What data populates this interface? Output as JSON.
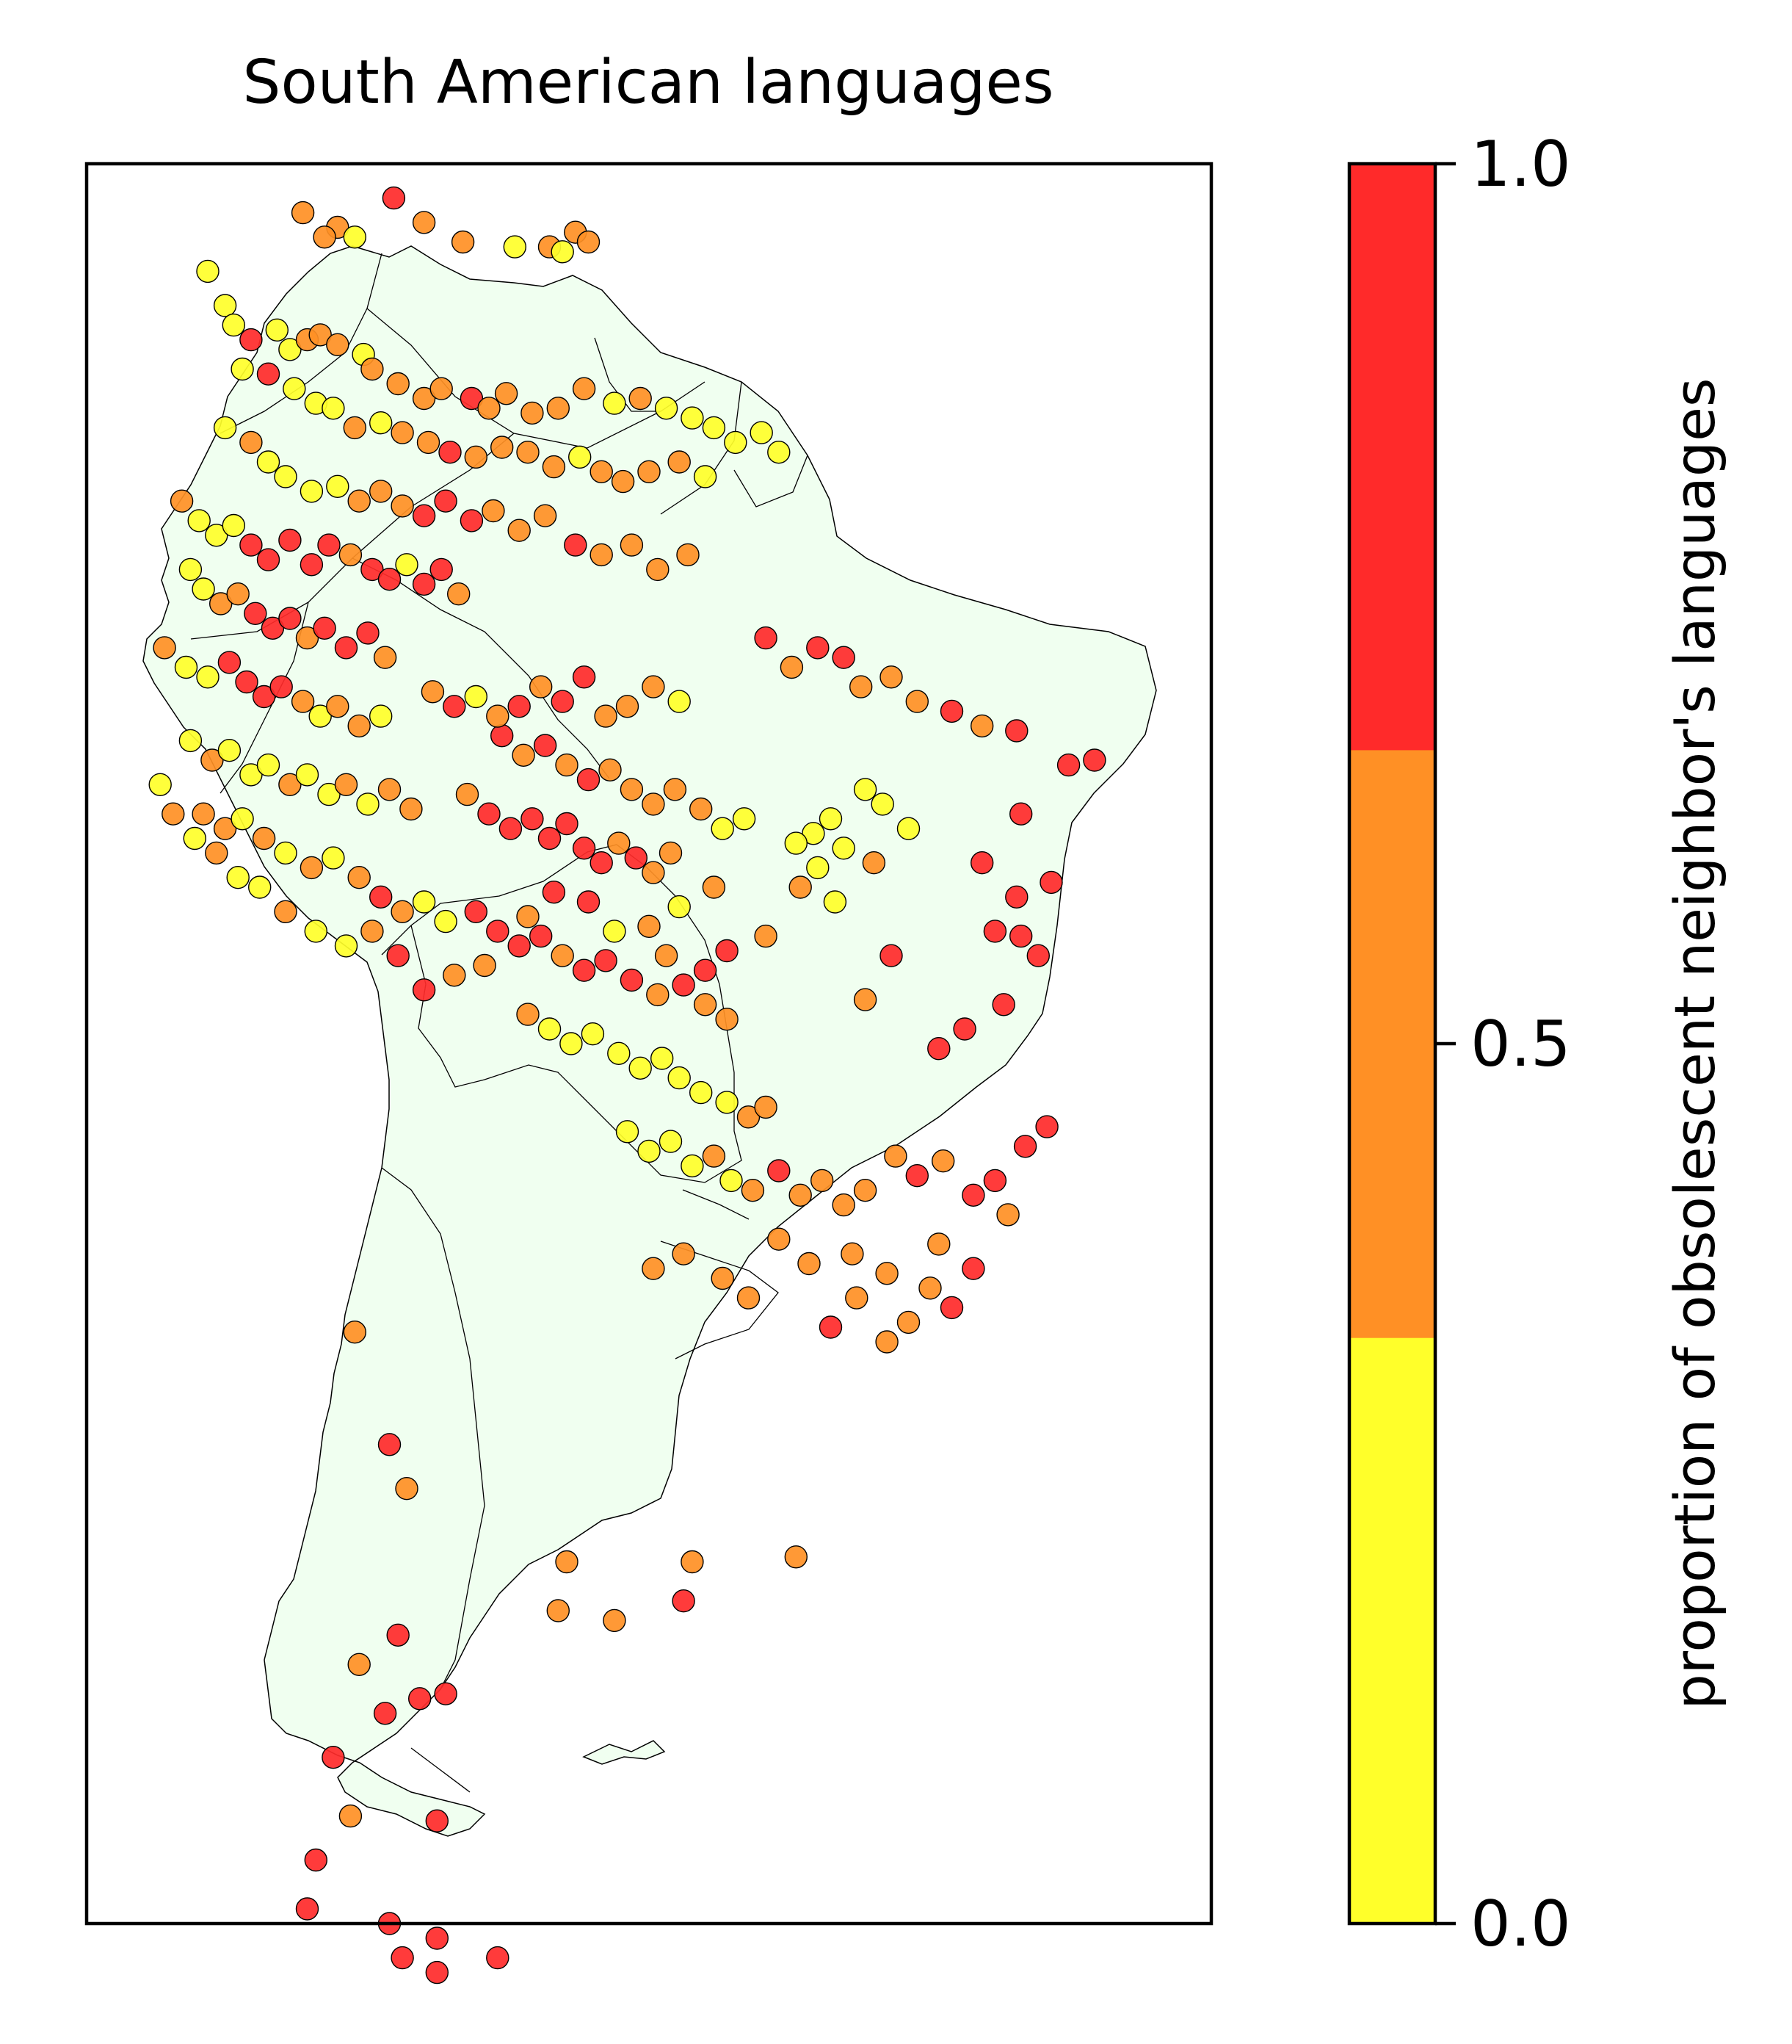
{
  "title": "South American languages",
  "colorbar": {
    "label": "proportion of obsolescent neighbor's languages",
    "ticks": [
      "0.0",
      "0.5",
      "1.0"
    ],
    "bins": [
      {
        "from": 0.0,
        "to": 0.333,
        "color": "#ffff2a"
      },
      {
        "from": 0.333,
        "to": 0.667,
        "color": "#ff9025"
      },
      {
        "from": 0.667,
        "to": 1.0,
        "color": "#ff2a2a"
      }
    ]
  },
  "colors": {
    "land": "#f0fff0",
    "low": "#ffff2a",
    "mid": "#ff9025",
    "high": "#ff2a2a"
  },
  "chart_data": {
    "type": "scatter",
    "title": "South American languages",
    "xlabel": "",
    "ylabel": "",
    "xlim": [
      -84,
      -32
    ],
    "ylim": [
      -58,
      14
    ],
    "grid": false,
    "legend": "colorbar-right",
    "points": [
      [
        -74.0,
        12.0,
        0.5
      ],
      [
        -72.4,
        11.4,
        0.5
      ],
      [
        -71.6,
        11.0,
        0.2
      ],
      [
        -73.0,
        11.0,
        0.5
      ],
      [
        -69.8,
        12.6,
        1.0
      ],
      [
        -68.4,
        11.6,
        0.5
      ],
      [
        -66.6,
        10.8,
        0.5
      ],
      [
        -64.2,
        10.6,
        0.2
      ],
      [
        -62.6,
        10.6,
        0.5
      ],
      [
        -62.0,
        10.4,
        0.2
      ],
      [
        -61.4,
        11.2,
        0.5
      ],
      [
        -60.8,
        10.8,
        0.5
      ],
      [
        -78.4,
        9.6,
        0.2
      ],
      [
        -77.6,
        8.2,
        0.2
      ],
      [
        -77.2,
        7.4,
        0.2
      ],
      [
        -76.4,
        6.8,
        1.0
      ],
      [
        -75.2,
        7.2,
        0.2
      ],
      [
        -74.6,
        6.4,
        0.2
      ],
      [
        -73.8,
        6.8,
        0.5
      ],
      [
        -73.2,
        7.0,
        0.5
      ],
      [
        -72.4,
        6.6,
        0.5
      ],
      [
        -71.2,
        6.2,
        0.2
      ],
      [
        -70.8,
        5.6,
        0.5
      ],
      [
        -69.6,
        5.0,
        0.5
      ],
      [
        -68.4,
        4.4,
        0.5
      ],
      [
        -67.6,
        4.8,
        0.5
      ],
      [
        -66.2,
        4.4,
        1.0
      ],
      [
        -65.4,
        4.0,
        0.5
      ],
      [
        -64.6,
        4.6,
        0.5
      ],
      [
        -63.4,
        3.8,
        0.5
      ],
      [
        -62.2,
        4.0,
        0.5
      ],
      [
        -61.0,
        4.8,
        0.5
      ],
      [
        -59.6,
        4.2,
        0.2
      ],
      [
        -58.4,
        4.4,
        0.5
      ],
      [
        -57.2,
        4.0,
        0.2
      ],
      [
        -56.0,
        3.6,
        0.2
      ],
      [
        -55.0,
        3.2,
        0.2
      ],
      [
        -54.0,
        2.6,
        0.2
      ],
      [
        -52.8,
        3.0,
        0.2
      ],
      [
        -52.0,
        2.2,
        0.2
      ],
      [
        -76.8,
        5.6,
        0.2
      ],
      [
        -75.6,
        5.4,
        1.0
      ],
      [
        -74.4,
        4.8,
        0.2
      ],
      [
        -73.4,
        4.2,
        0.2
      ],
      [
        -72.6,
        4.0,
        0.2
      ],
      [
        -71.6,
        3.2,
        0.5
      ],
      [
        -70.4,
        3.4,
        0.2
      ],
      [
        -69.4,
        3.0,
        0.5
      ],
      [
        -68.2,
        2.6,
        0.5
      ],
      [
        -67.2,
        2.2,
        1.0
      ],
      [
        -66.0,
        2.0,
        0.5
      ],
      [
        -64.8,
        2.4,
        0.5
      ],
      [
        -63.6,
        2.2,
        0.5
      ],
      [
        -62.4,
        1.6,
        0.5
      ],
      [
        -61.2,
        2.0,
        0.2
      ],
      [
        -60.2,
        1.4,
        0.5
      ],
      [
        -59.2,
        1.0,
        0.5
      ],
      [
        -58.0,
        1.4,
        0.5
      ],
      [
        -56.6,
        1.8,
        0.5
      ],
      [
        -55.4,
        1.2,
        0.2
      ],
      [
        -77.6,
        3.2,
        0.2
      ],
      [
        -76.4,
        2.6,
        0.5
      ],
      [
        -75.6,
        1.8,
        0.2
      ],
      [
        -74.8,
        1.2,
        0.2
      ],
      [
        -73.6,
        0.6,
        0.2
      ],
      [
        -72.4,
        0.8,
        0.2
      ],
      [
        -71.4,
        0.2,
        0.5
      ],
      [
        -70.4,
        0.6,
        0.5
      ],
      [
        -69.4,
        0.0,
        0.5
      ],
      [
        -68.4,
        -0.4,
        1.0
      ],
      [
        -67.4,
        0.2,
        1.0
      ],
      [
        -66.2,
        -0.6,
        1.0
      ],
      [
        -65.2,
        -0.2,
        0.5
      ],
      [
        -64.0,
        -1.0,
        0.5
      ],
      [
        -62.8,
        -0.4,
        0.5
      ],
      [
        -61.4,
        -1.6,
        1.0
      ],
      [
        -60.2,
        -2.0,
        0.5
      ],
      [
        -58.8,
        -1.6,
        0.5
      ],
      [
        -57.6,
        -2.6,
        0.5
      ],
      [
        -56.2,
        -2.0,
        0.5
      ],
      [
        -79.6,
        0.2,
        0.5
      ],
      [
        -78.8,
        -0.6,
        0.2
      ],
      [
        -78.0,
        -1.2,
        0.2
      ],
      [
        -77.2,
        -0.8,
        0.2
      ],
      [
        -76.4,
        -1.6,
        1.0
      ],
      [
        -75.6,
        -2.2,
        1.0
      ],
      [
        -74.6,
        -1.4,
        1.0
      ],
      [
        -73.6,
        -2.4,
        1.0
      ],
      [
        -72.8,
        -1.6,
        1.0
      ],
      [
        -71.8,
        -2.0,
        0.5
      ],
      [
        -70.8,
        -2.6,
        1.0
      ],
      [
        -70.0,
        -3.0,
        1.0
      ],
      [
        -69.2,
        -2.4,
        0.2
      ],
      [
        -68.4,
        -3.2,
        1.0
      ],
      [
        -67.6,
        -2.6,
        1.0
      ],
      [
        -66.8,
        -3.6,
        0.5
      ],
      [
        -79.2,
        -2.6,
        0.2
      ],
      [
        -78.6,
        -3.4,
        0.2
      ],
      [
        -77.8,
        -4.0,
        0.5
      ],
      [
        -77.0,
        -3.6,
        0.5
      ],
      [
        -76.2,
        -4.4,
        1.0
      ],
      [
        -75.4,
        -5.0,
        1.0
      ],
      [
        -74.6,
        -4.6,
        1.0
      ],
      [
        -73.8,
        -5.4,
        0.5
      ],
      [
        -73.0,
        -5.0,
        1.0
      ],
      [
        -72.0,
        -5.8,
        1.0
      ],
      [
        -71.0,
        -5.2,
        1.0
      ],
      [
        -70.2,
        -6.2,
        0.5
      ],
      [
        -80.4,
        -5.8,
        0.5
      ],
      [
        -79.4,
        -6.6,
        0.2
      ],
      [
        -78.4,
        -7.0,
        0.2
      ],
      [
        -77.4,
        -6.4,
        1.0
      ],
      [
        -76.6,
        -7.2,
        1.0
      ],
      [
        -75.8,
        -7.8,
        1.0
      ],
      [
        -75.0,
        -7.4,
        1.0
      ],
      [
        -74.0,
        -8.0,
        0.5
      ],
      [
        -73.2,
        -8.6,
        0.2
      ],
      [
        -72.4,
        -8.2,
        0.5
      ],
      [
        -71.4,
        -9.0,
        0.5
      ],
      [
        -70.4,
        -8.6,
        0.2
      ],
      [
        -79.2,
        -9.6,
        0.2
      ],
      [
        -78.2,
        -10.4,
        0.5
      ],
      [
        -77.4,
        -10.0,
        0.2
      ],
      [
        -76.4,
        -11.0,
        0.2
      ],
      [
        -75.6,
        -10.6,
        0.2
      ],
      [
        -74.6,
        -11.4,
        0.5
      ],
      [
        -73.8,
        -11.0,
        0.2
      ],
      [
        -72.8,
        -11.8,
        0.2
      ],
      [
        -72.0,
        -11.4,
        0.5
      ],
      [
        -71.0,
        -12.2,
        0.2
      ],
      [
        -70.0,
        -11.6,
        0.5
      ],
      [
        -69.0,
        -12.4,
        0.5
      ],
      [
        -78.6,
        -12.6,
        0.5
      ],
      [
        -77.6,
        -13.2,
        0.5
      ],
      [
        -76.8,
        -12.8,
        0.2
      ],
      [
        -75.8,
        -13.6,
        0.5
      ],
      [
        -74.8,
        -14.2,
        0.2
      ],
      [
        -73.6,
        -14.8,
        0.5
      ],
      [
        -72.6,
        -14.4,
        0.2
      ],
      [
        -71.4,
        -15.2,
        0.5
      ],
      [
        -70.4,
        -16.0,
        1.0
      ],
      [
        -69.4,
        -16.6,
        0.5
      ],
      [
        -68.4,
        -16.2,
        0.2
      ],
      [
        -67.4,
        -17.0,
        0.2
      ],
      [
        -66.4,
        -11.8,
        0.5
      ],
      [
        -65.4,
        -12.6,
        1.0
      ],
      [
        -64.4,
        -13.2,
        1.0
      ],
      [
        -63.4,
        -12.8,
        1.0
      ],
      [
        -62.6,
        -13.6,
        1.0
      ],
      [
        -61.8,
        -13.0,
        1.0
      ],
      [
        -61.0,
        -14.0,
        1.0
      ],
      [
        -60.2,
        -14.6,
        1.0
      ],
      [
        -59.4,
        -13.8,
        0.5
      ],
      [
        -58.6,
        -14.4,
        1.0
      ],
      [
        -57.8,
        -15.0,
        0.5
      ],
      [
        -57.0,
        -14.2,
        0.5
      ],
      [
        -64.8,
        -9.4,
        1.0
      ],
      [
        -63.8,
        -10.2,
        0.5
      ],
      [
        -62.8,
        -9.8,
        1.0
      ],
      [
        -61.8,
        -10.6,
        0.5
      ],
      [
        -60.8,
        -11.2,
        1.0
      ],
      [
        -59.8,
        -10.8,
        0.5
      ],
      [
        -58.8,
        -11.6,
        0.5
      ],
      [
        -57.8,
        -12.2,
        0.5
      ],
      [
        -56.8,
        -11.6,
        0.5
      ],
      [
        -55.6,
        -12.4,
        0.5
      ],
      [
        -54.6,
        -13.2,
        0.2
      ],
      [
        -53.6,
        -12.8,
        0.2
      ],
      [
        -68.0,
        -7.6,
        0.5
      ],
      [
        -67.0,
        -8.2,
        1.0
      ],
      [
        -66.0,
        -7.8,
        0.2
      ],
      [
        -65.0,
        -8.6,
        0.5
      ],
      [
        -64.0,
        -8.2,
        1.0
      ],
      [
        -63.0,
        -7.4,
        0.5
      ],
      [
        -62.0,
        -8.0,
        1.0
      ],
      [
        -61.0,
        -7.0,
        1.0
      ],
      [
        -60.0,
        -8.6,
        0.5
      ],
      [
        -59.0,
        -8.2,
        0.5
      ],
      [
        -57.8,
        -7.4,
        0.5
      ],
      [
        -56.6,
        -8.0,
        0.2
      ],
      [
        -66.0,
        -16.6,
        1.0
      ],
      [
        -65.0,
        -17.4,
        1.0
      ],
      [
        -64.0,
        -18.0,
        1.0
      ],
      [
        -63.0,
        -17.6,
        1.0
      ],
      [
        -62.0,
        -18.4,
        0.5
      ],
      [
        -61.0,
        -19.0,
        1.0
      ],
      [
        -60.0,
        -18.6,
        1.0
      ],
      [
        -58.8,
        -19.4,
        1.0
      ],
      [
        -57.6,
        -20.0,
        0.5
      ],
      [
        -56.4,
        -19.6,
        1.0
      ],
      [
        -55.4,
        -20.4,
        0.5
      ],
      [
        -54.4,
        -21.0,
        0.5
      ],
      [
        -63.6,
        -20.8,
        0.5
      ],
      [
        -62.6,
        -21.4,
        0.2
      ],
      [
        -61.6,
        -22.0,
        0.2
      ],
      [
        -60.6,
        -21.6,
        0.2
      ],
      [
        -59.4,
        -22.4,
        0.2
      ],
      [
        -58.4,
        -23.0,
        0.2
      ],
      [
        -57.4,
        -22.6,
        0.2
      ],
      [
        -56.6,
        -23.4,
        0.2
      ],
      [
        -55.6,
        -24.0,
        0.2
      ],
      [
        -54.4,
        -24.4,
        0.2
      ],
      [
        -53.4,
        -25.0,
        0.5
      ],
      [
        -52.6,
        -24.6,
        0.5
      ],
      [
        -59.0,
        -25.6,
        0.2
      ],
      [
        -58.0,
        -26.4,
        0.2
      ],
      [
        -57.0,
        -26.0,
        0.2
      ],
      [
        -56.0,
        -27.0,
        0.2
      ],
      [
        -55.0,
        -26.6,
        0.5
      ],
      [
        -54.2,
        -27.6,
        0.2
      ],
      [
        -53.2,
        -28.0,
        0.5
      ],
      [
        -52.0,
        -27.2,
        1.0
      ],
      [
        -51.0,
        -28.2,
        0.5
      ],
      [
        -50.0,
        -27.6,
        0.5
      ],
      [
        -49.0,
        -28.6,
        0.5
      ],
      [
        -48.0,
        -28.0,
        0.5
      ],
      [
        -46.6,
        -26.6,
        0.5
      ],
      [
        -45.6,
        -27.4,
        1.0
      ],
      [
        -44.4,
        -26.8,
        0.5
      ],
      [
        -43.0,
        -28.2,
        1.0
      ],
      [
        -42.0,
        -27.6,
        1.0
      ],
      [
        -40.6,
        -26.2,
        1.0
      ],
      [
        -39.6,
        -25.4,
        1.0
      ],
      [
        -41.4,
        -29.0,
        0.5
      ],
      [
        -44.6,
        -30.2,
        0.5
      ],
      [
        -43.0,
        -31.2,
        1.0
      ],
      [
        -45.0,
        -32.0,
        0.5
      ],
      [
        -47.0,
        -31.4,
        0.5
      ],
      [
        -48.6,
        -30.6,
        0.5
      ],
      [
        -50.6,
        -31.0,
        0.5
      ],
      [
        -52.0,
        -30.0,
        0.5
      ],
      [
        -53.4,
        -32.4,
        0.5
      ],
      [
        -54.6,
        -31.6,
        0.5
      ],
      [
        -56.4,
        -30.6,
        0.5
      ],
      [
        -57.8,
        -31.2,
        0.5
      ],
      [
        -49.6,
        -33.6,
        1.0
      ],
      [
        -48.4,
        -32.4,
        0.5
      ],
      [
        -47.0,
        -34.2,
        0.5
      ],
      [
        -46.0,
        -33.4,
        0.5
      ],
      [
        -44.0,
        -32.8,
        1.0
      ],
      [
        -52.6,
        -5.4,
        1.0
      ],
      [
        -51.4,
        -6.6,
        0.5
      ],
      [
        -50.2,
        -5.8,
        1.0
      ],
      [
        -49.0,
        -6.2,
        1.0
      ],
      [
        -48.2,
        -7.4,
        0.5
      ],
      [
        -46.8,
        -7.0,
        0.5
      ],
      [
        -45.6,
        -8.0,
        0.5
      ],
      [
        -44.0,
        -8.4,
        1.0
      ],
      [
        -42.6,
        -9.0,
        0.5
      ],
      [
        -41.0,
        -9.2,
        1.0
      ],
      [
        -38.6,
        -10.6,
        1.0
      ],
      [
        -37.4,
        -10.4,
        1.0
      ],
      [
        -40.8,
        -12.6,
        1.0
      ],
      [
        -41.0,
        -16.0,
        1.0
      ],
      [
        -42.0,
        -17.4,
        1.0
      ],
      [
        -40.8,
        -17.6,
        1.0
      ],
      [
        -42.6,
        -14.6,
        1.0
      ],
      [
        -39.4,
        -15.4,
        1.0
      ],
      [
        -40.0,
        -18.4,
        1.0
      ],
      [
        -41.6,
        -20.4,
        1.0
      ],
      [
        -43.4,
        -21.4,
        1.0
      ],
      [
        -44.6,
        -22.2,
        1.0
      ],
      [
        -46.8,
        -18.4,
        1.0
      ],
      [
        -48.0,
        -20.2,
        0.5
      ],
      [
        -50.4,
        -13.4,
        0.2
      ],
      [
        -49.0,
        -14.0,
        0.2
      ],
      [
        -50.2,
        -14.8,
        0.2
      ],
      [
        -51.2,
        -13.8,
        0.2
      ],
      [
        -49.6,
        -12.8,
        0.2
      ],
      [
        -48.0,
        -11.6,
        0.2
      ],
      [
        -47.2,
        -12.2,
        0.2
      ],
      [
        -46.0,
        -13.2,
        0.2
      ],
      [
        -47.6,
        -14.6,
        0.5
      ],
      [
        -49.4,
        -16.2,
        0.2
      ],
      [
        -51.0,
        -15.6,
        0.5
      ],
      [
        -52.6,
        -17.6,
        0.5
      ],
      [
        -55.0,
        -15.6,
        0.5
      ],
      [
        -56.6,
        -16.4,
        0.2
      ],
      [
        -58.0,
        -17.2,
        0.5
      ],
      [
        -54.4,
        -18.2,
        1.0
      ],
      [
        -55.4,
        -19.0,
        1.0
      ],
      [
        -57.2,
        -18.4,
        0.5
      ],
      [
        -59.6,
        -17.4,
        0.2
      ],
      [
        -60.8,
        -16.2,
        1.0
      ],
      [
        -62.4,
        -15.8,
        1.0
      ],
      [
        -63.6,
        -16.8,
        0.5
      ],
      [
        -65.6,
        -18.8,
        0.5
      ],
      [
        -67.0,
        -19.2,
        0.5
      ],
      [
        -68.4,
        -19.8,
        1.0
      ],
      [
        -69.6,
        -18.4,
        1.0
      ],
      [
        -70.8,
        -17.4,
        0.5
      ],
      [
        -72.0,
        -18.0,
        0.2
      ],
      [
        -73.4,
        -17.4,
        0.2
      ],
      [
        -74.8,
        -16.6,
        0.5
      ],
      [
        -76.0,
        -15.6,
        0.2
      ],
      [
        -77.0,
        -15.2,
        0.2
      ],
      [
        -78.0,
        -14.2,
        0.5
      ],
      [
        -79.0,
        -13.6,
        0.2
      ],
      [
        -80.0,
        -12.6,
        0.5
      ],
      [
        -80.6,
        -11.4,
        0.2
      ],
      [
        -71.6,
        -33.8,
        0.5
      ],
      [
        -70.0,
        -38.4,
        1.0
      ],
      [
        -69.2,
        -40.2,
        0.5
      ],
      [
        -69.6,
        -46.2,
        1.0
      ],
      [
        -71.4,
        -47.4,
        0.5
      ],
      [
        -68.6,
        -48.8,
        1.0
      ],
      [
        -70.2,
        -49.4,
        1.0
      ],
      [
        -67.4,
        -48.6,
        1.0
      ],
      [
        -72.6,
        -51.2,
        1.0
      ],
      [
        -67.8,
        -53.8,
        1.0
      ],
      [
        -73.4,
        -55.4,
        1.0
      ],
      [
        -70.0,
        -58.0,
        1.0
      ],
      [
        -67.8,
        -58.6,
        1.0
      ],
      [
        -69.4,
        -59.4,
        1.0
      ],
      [
        -67.8,
        -60.0,
        1.0
      ],
      [
        -65.0,
        -59.4,
        1.0
      ],
      [
        -73.8,
        -57.4,
        1.0
      ],
      [
        -71.8,
        -53.6,
        0.5
      ],
      [
        -61.8,
        -43.2,
        0.5
      ],
      [
        -59.6,
        -45.6,
        0.5
      ],
      [
        -62.2,
        -45.2,
        0.5
      ],
      [
        -56.0,
        -43.2,
        0.5
      ],
      [
        -56.4,
        -44.8,
        1.0
      ],
      [
        -51.2,
        -43.0,
        0.5
      ]
    ]
  }
}
